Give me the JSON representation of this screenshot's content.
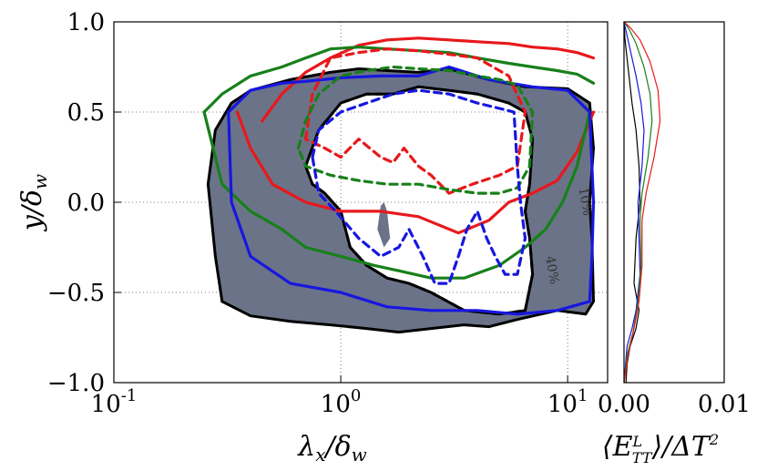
{
  "chart_data": [
    {
      "type": "contour",
      "xscale": "log",
      "xlim": [
        0.1,
        15
      ],
      "ylim": [
        -1.0,
        1.0
      ],
      "grid": true,
      "xlabel": "λx/δw",
      "ylabel": "y/δw",
      "xticks": [
        {
          "value": 0.1,
          "label": "10",
          "exp": "-1"
        },
        {
          "value": 1,
          "label": "10",
          "exp": "0"
        },
        {
          "value": 10,
          "label": "10",
          "exp": "1"
        }
      ],
      "yticks": [
        {
          "value": 1.0,
          "label": "1.0"
        },
        {
          "value": 0.5,
          "label": "0.5"
        },
        {
          "value": 0.0,
          "label": "0.0"
        },
        {
          "value": -0.5,
          "label": "−0.5"
        },
        {
          "value": -1.0,
          "label": "−1.0"
        }
      ],
      "annotations": [
        {
          "text": "10%",
          "x": 11.5,
          "y": 0.0
        },
        {
          "text": "40%",
          "x": 8.2,
          "y": -0.38
        }
      ],
      "filled_region": {
        "name": "gray",
        "color": "#6b7388",
        "outer": [
          [
            0.33,
            0.55
          ],
          [
            0.4,
            0.62
          ],
          [
            0.6,
            0.68
          ],
          [
            0.9,
            0.72
          ],
          [
            1.2,
            0.74
          ],
          [
            1.6,
            0.73
          ],
          [
            2.2,
            0.72
          ],
          [
            3.0,
            0.74
          ],
          [
            4.5,
            0.68
          ],
          [
            6.5,
            0.64
          ],
          [
            10.0,
            0.63
          ],
          [
            12.5,
            0.55
          ],
          [
            13.0,
            0.3
          ],
          [
            12.5,
            0.0
          ],
          [
            12.8,
            -0.2
          ],
          [
            13.0,
            -0.55
          ],
          [
            12.0,
            -0.62
          ],
          [
            9.0,
            -0.6
          ],
          [
            6.0,
            -0.65
          ],
          [
            4.5,
            -0.69
          ],
          [
            3.5,
            -0.68
          ],
          [
            2.5,
            -0.7
          ],
          [
            1.8,
            -0.72
          ],
          [
            1.3,
            -0.7
          ],
          [
            0.9,
            -0.68
          ],
          [
            0.6,
            -0.66
          ],
          [
            0.4,
            -0.63
          ],
          [
            0.3,
            -0.55
          ],
          [
            0.28,
            -0.3
          ],
          [
            0.26,
            0.1
          ],
          [
            0.28,
            0.4
          ],
          [
            0.33,
            0.55
          ]
        ],
        "hole": [
          [
            0.7,
            0.2
          ],
          [
            0.8,
            0.4
          ],
          [
            1.0,
            0.55
          ],
          [
            1.3,
            0.6
          ],
          [
            1.7,
            0.6
          ],
          [
            2.2,
            0.64
          ],
          [
            3.0,
            0.62
          ],
          [
            4.0,
            0.6
          ],
          [
            5.5,
            0.55
          ],
          [
            6.5,
            0.5
          ],
          [
            7.0,
            0.35
          ],
          [
            6.8,
            0.1
          ],
          [
            6.5,
            -0.05
          ],
          [
            6.8,
            -0.2
          ],
          [
            7.0,
            -0.4
          ],
          [
            6.5,
            -0.6
          ],
          [
            5.0,
            -0.62
          ],
          [
            3.5,
            -0.6
          ],
          [
            2.5,
            -0.5
          ],
          [
            2.0,
            -0.45
          ],
          [
            1.6,
            -0.42
          ],
          [
            1.3,
            -0.35
          ],
          [
            1.1,
            -0.25
          ],
          [
            1.0,
            -0.05
          ],
          [
            0.85,
            0.05
          ],
          [
            0.75,
            0.1
          ],
          [
            0.7,
            0.2
          ]
        ],
        "island": [
          [
            1.55,
            0.0
          ],
          [
            1.6,
            -0.05
          ],
          [
            1.65,
            -0.2
          ],
          [
            1.55,
            -0.25
          ],
          [
            1.45,
            -0.15
          ],
          [
            1.5,
            -0.02
          ],
          [
            1.55,
            0.0
          ]
        ]
      },
      "series": [
        {
          "name": "red solid",
          "color": "#e8181b",
          "style": "solid",
          "x": [
            0.45,
            0.55,
            0.7,
            0.9,
            1.2,
            1.6,
            2.2,
            3.0,
            4.0,
            5.5,
            7.0,
            9.0,
            11.0,
            13.0
          ],
          "y": [
            0.45,
            0.6,
            0.72,
            0.8,
            0.87,
            0.9,
            0.91,
            0.9,
            0.89,
            0.88,
            0.86,
            0.85,
            0.83,
            0.8
          ]
        },
        {
          "name": "green solid",
          "color": "#17801a",
          "style": "solid",
          "x": [
            0.25,
            0.3,
            0.4,
            0.55,
            0.7,
            0.9,
            1.2,
            1.6,
            2.2,
            3.0,
            4.0,
            5.5,
            7.0,
            9.0,
            11.0,
            13.0
          ],
          "y": [
            0.5,
            0.6,
            0.7,
            0.75,
            0.8,
            0.85,
            0.86,
            0.85,
            0.84,
            0.83,
            0.8,
            0.77,
            0.75,
            0.73,
            0.71,
            0.66
          ]
        },
        {
          "name": "red solid lower",
          "color": "#e8181b",
          "style": "solid",
          "x": [
            0.35,
            0.4,
            0.5,
            0.7,
            1.0,
            1.5,
            2.2,
            3.3,
            4.5,
            5.5,
            7.0,
            9.0,
            11.0,
            13.0
          ],
          "y": [
            0.5,
            0.3,
            0.1,
            0.0,
            -0.05,
            -0.05,
            -0.08,
            -0.17,
            -0.1,
            0.0,
            0.05,
            0.12,
            0.28,
            0.5
          ]
        },
        {
          "name": "green solid lower",
          "color": "#17801a",
          "style": "solid",
          "x": [
            0.25,
            0.3,
            0.4,
            0.55,
            0.7,
            1.0,
            1.4,
            1.8,
            2.5,
            3.5,
            5.0,
            6.5,
            8.0,
            9.5,
            11.0,
            12.5
          ],
          "y": [
            0.5,
            0.1,
            -0.05,
            -0.15,
            -0.25,
            -0.3,
            -0.35,
            -0.38,
            -0.42,
            -0.42,
            -0.35,
            -0.25,
            -0.15,
            0.0,
            0.2,
            0.5
          ]
        },
        {
          "name": "blue solid",
          "color": "#1717e0",
          "style": "solid",
          "x": [
            0.32,
            0.4,
            0.55,
            0.7,
            1.0,
            1.5,
            2.2,
            3.0,
            4.5,
            7.0,
            10.0,
            12.5,
            13.0,
            12.8,
            12.5,
            9.0,
            6.0,
            4.0,
            2.5,
            1.6,
            1.0,
            0.6,
            0.4,
            0.33,
            0.32
          ],
          "y": [
            0.5,
            0.62,
            0.66,
            0.67,
            0.69,
            0.7,
            0.7,
            0.75,
            0.68,
            0.64,
            0.62,
            0.5,
            0.0,
            -0.3,
            -0.55,
            -0.6,
            -0.62,
            -0.6,
            -0.6,
            -0.58,
            -0.5,
            -0.45,
            -0.3,
            0.0,
            0.5
          ]
        },
        {
          "name": "red dashed",
          "color": "#e8181b",
          "style": "dashed",
          "x": [
            0.7,
            0.75,
            0.9,
            1.2,
            1.6,
            2.2,
            3.0,
            4.0,
            5.5,
            6.5,
            6.0,
            5.0,
            3.8,
            3.0,
            2.5,
            2.2,
            1.9,
            1.7,
            1.5,
            1.2,
            1.0,
            0.85,
            0.7
          ],
          "y": [
            0.35,
            0.6,
            0.8,
            0.83,
            0.85,
            0.84,
            0.82,
            0.8,
            0.7,
            0.5,
            0.2,
            0.15,
            0.1,
            0.05,
            0.15,
            0.2,
            0.3,
            0.22,
            0.25,
            0.35,
            0.25,
            0.3,
            0.35
          ]
        },
        {
          "name": "green dashed",
          "color": "#17801a",
          "style": "dashed",
          "x": [
            0.65,
            0.7,
            0.8,
            1.0,
            1.3,
            1.7,
            2.2,
            3.0,
            4.0,
            5.0,
            6.0,
            7.0,
            6.8,
            6.0,
            5.0,
            4.0,
            3.0,
            2.2,
            1.6,
            1.2,
            0.9,
            0.7,
            0.65
          ],
          "y": [
            0.3,
            0.45,
            0.6,
            0.7,
            0.73,
            0.75,
            0.74,
            0.73,
            0.7,
            0.68,
            0.65,
            0.5,
            0.2,
            0.08,
            0.05,
            0.05,
            0.07,
            0.1,
            0.1,
            0.12,
            0.15,
            0.2,
            0.3
          ]
        },
        {
          "name": "blue dashed",
          "color": "#1717e0",
          "style": "dashed",
          "x": [
            0.75,
            0.8,
            1.0,
            1.3,
            1.7,
            2.2,
            3.0,
            4.0,
            5.0,
            5.8,
            6.0,
            6.2,
            6.5,
            6.0,
            5.3,
            4.8,
            4.4,
            4.0,
            3.6,
            3.3,
            3.0,
            2.6,
            2.3,
            2.0,
            1.8,
            1.5,
            1.2,
            0.95,
            0.8,
            0.75
          ],
          "y": [
            0.25,
            0.4,
            0.5,
            0.55,
            0.6,
            0.62,
            0.6,
            0.55,
            0.52,
            0.5,
            0.2,
            0.0,
            -0.2,
            -0.4,
            -0.4,
            -0.3,
            -0.2,
            -0.05,
            -0.15,
            -0.3,
            -0.45,
            -0.45,
            -0.3,
            -0.15,
            -0.25,
            -0.3,
            -0.2,
            -0.05,
            0.05,
            0.25
          ]
        }
      ]
    },
    {
      "type": "line",
      "xlim": [
        0,
        0.01
      ],
      "ylim": [
        -1.0,
        1.0
      ],
      "xlabel": "⟨E_TT^L⟩/ΔT²",
      "xticks": [
        {
          "value": 0.0,
          "label": "0.00"
        },
        {
          "value": 0.01,
          "label": "0.01"
        }
      ],
      "series": [
        {
          "name": "black",
          "color": "#000000",
          "x": [
            0.0002,
            0.0003,
            0.0006,
            0.0012,
            0.0015,
            0.001,
            0.0012,
            0.0016,
            0.0015,
            0.0012,
            0.0008,
            0.0005,
            0.0003,
            0.0001,
            0.0
          ],
          "y": [
            -1.0,
            -0.9,
            -0.8,
            -0.7,
            -0.6,
            -0.45,
            -0.2,
            0.0,
            0.2,
            0.4,
            0.55,
            0.7,
            0.8,
            0.9,
            1.0
          ]
        },
        {
          "name": "blue",
          "color": "#1717e0",
          "x": [
            0.0,
            0.0003,
            0.0008,
            0.0012,
            0.0016,
            0.0015,
            0.0014,
            0.0018,
            0.002,
            0.0017,
            0.0012,
            0.0006,
            0.0002,
            0.0
          ],
          "y": [
            -1.0,
            -0.8,
            -0.7,
            -0.6,
            -0.4,
            -0.2,
            0.0,
            0.2,
            0.4,
            0.55,
            0.7,
            0.85,
            0.95,
            1.0
          ]
        },
        {
          "name": "green",
          "color": "#17801a",
          "x": [
            0.0,
            0.0003,
            0.0009,
            0.0014,
            0.0017,
            0.0016,
            0.0018,
            0.0024,
            0.0028,
            0.0026,
            0.002,
            0.0012,
            0.0005,
            0.0
          ],
          "y": [
            -1.0,
            -0.85,
            -0.72,
            -0.55,
            -0.35,
            -0.1,
            0.05,
            0.25,
            0.45,
            0.6,
            0.75,
            0.88,
            0.96,
            1.0
          ]
        },
        {
          "name": "red",
          "color": "#e8181b",
          "x": [
            0.0,
            0.0004,
            0.001,
            0.0015,
            0.0018,
            0.0018,
            0.0022,
            0.003,
            0.0036,
            0.0034,
            0.0026,
            0.0016,
            0.0006,
            0.0
          ],
          "y": [
            -1.0,
            -0.85,
            -0.7,
            -0.55,
            -0.35,
            -0.1,
            0.05,
            0.25,
            0.45,
            0.62,
            0.78,
            0.9,
            0.97,
            1.0
          ]
        }
      ]
    }
  ]
}
